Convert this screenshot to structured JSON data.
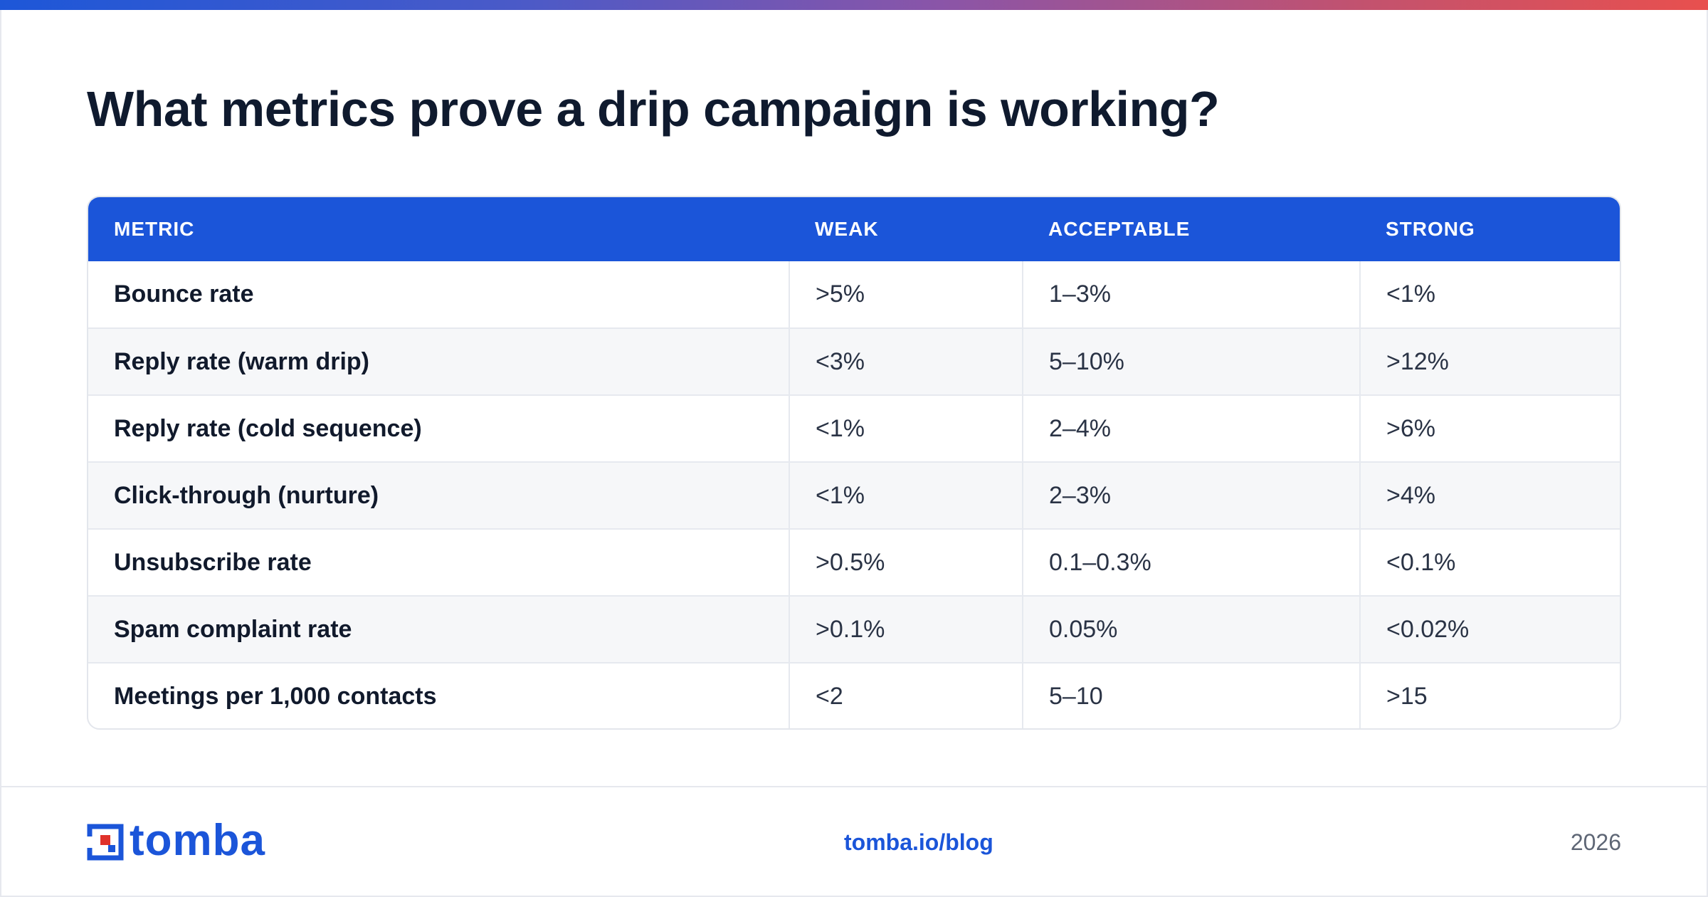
{
  "title": "What metrics prove a drip campaign is working?",
  "table": {
    "headers": [
      "METRIC",
      "WEAK",
      "ACCEPTABLE",
      "STRONG"
    ],
    "rows": [
      [
        "Bounce rate",
        ">5%",
        "1–3%",
        "<1%"
      ],
      [
        "Reply rate (warm drip)",
        "<3%",
        "5–10%",
        ">12%"
      ],
      [
        "Reply rate (cold sequence)",
        "<1%",
        "2–4%",
        ">6%"
      ],
      [
        "Click-through (nurture)",
        "<1%",
        "2–3%",
        ">4%"
      ],
      [
        "Unsubscribe rate",
        ">0.5%",
        "0.1–0.3%",
        "<0.1%"
      ],
      [
        "Spam complaint rate",
        ">0.1%",
        "0.05%",
        "<0.02%"
      ],
      [
        "Meetings per 1,000 contacts",
        "<2",
        "5–10",
        ">15"
      ]
    ]
  },
  "footer": {
    "logo_text": "tomba",
    "link": "tomba.io/blog",
    "year": "2026"
  },
  "colors": {
    "accent": "#1b55d9",
    "logo_red": "#e0322b",
    "title": "#0f1a2e"
  }
}
